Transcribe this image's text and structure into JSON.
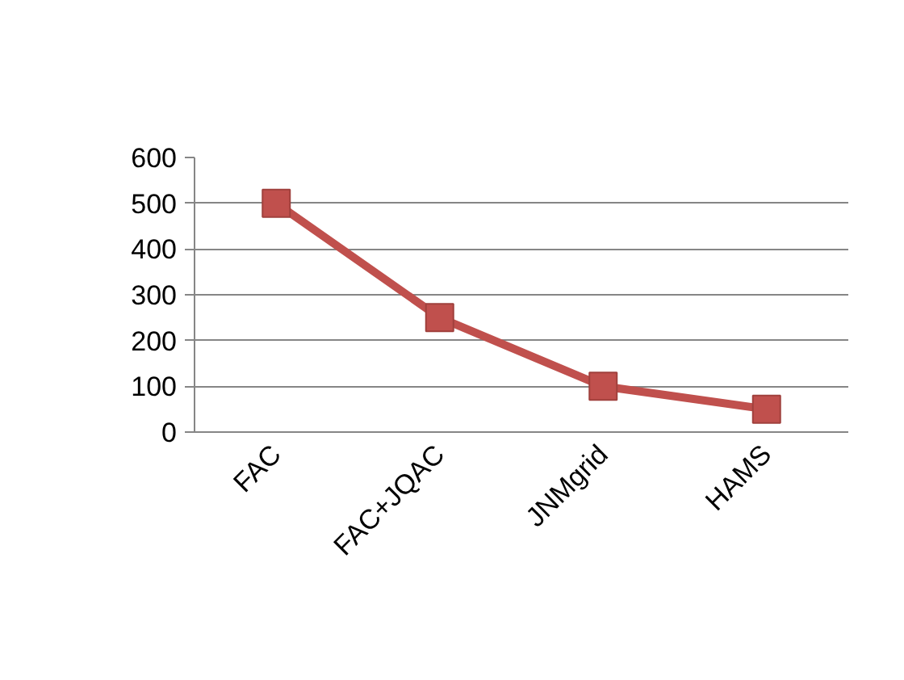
{
  "chart_data": {
    "type": "line",
    "categories": [
      "FAC",
      "FAC+JQAC",
      "JNMgrid",
      "HAMS"
    ],
    "series": [
      {
        "color": "#c0504d",
        "values": [
          500,
          250,
          100,
          50
        ]
      }
    ],
    "ylim": [
      0,
      600
    ],
    "yticks": [
      0,
      100,
      200,
      300,
      400,
      500,
      600
    ],
    "grid": "y",
    "marker": "square",
    "line_style": "solid"
  }
}
